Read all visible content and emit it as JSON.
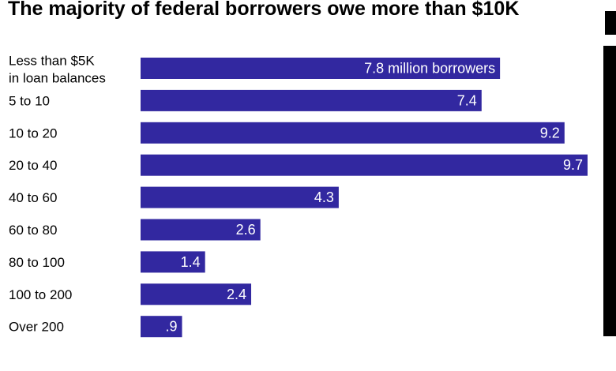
{
  "title": "The majority of federal borrowers owe more than $10K",
  "colors": {
    "bar": "#3228a0",
    "bar_label": "#ffffff",
    "text": "#000000"
  },
  "chart_data": {
    "type": "bar",
    "orientation": "horizontal",
    "title": "The majority of federal borrowers owe more than $10K",
    "categories": [
      [
        "Less than $5K",
        "in loan balances"
      ],
      [
        "5 to 10"
      ],
      [
        "10 to 20"
      ],
      [
        "20 to 40"
      ],
      [
        "40 to 60"
      ],
      [
        "60 to 80"
      ],
      [
        "80 to 100"
      ],
      [
        "100 to 200"
      ],
      [
        "Over 200"
      ]
    ],
    "values": [
      7.8,
      7.4,
      9.2,
      9.7,
      4.3,
      2.6,
      1.4,
      2.4,
      0.9
    ],
    "value_labels": [
      "7.8 million borrowers",
      "7.4",
      "9.2",
      "9.7",
      "4.3",
      "2.6",
      "1.4",
      "2.4",
      ".9"
    ],
    "xlim": [
      0,
      9.7
    ],
    "grid": false,
    "legend": "none"
  }
}
